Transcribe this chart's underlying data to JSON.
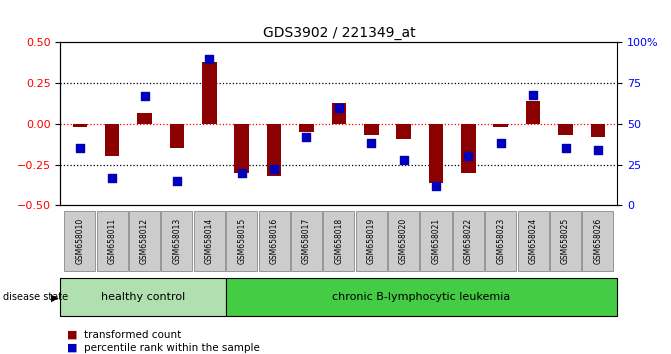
{
  "title": "GDS3902 / 221349_at",
  "samples": [
    "GSM658010",
    "GSM658011",
    "GSM658012",
    "GSM658013",
    "GSM658014",
    "GSM658015",
    "GSM658016",
    "GSM658017",
    "GSM658018",
    "GSM658019",
    "GSM658020",
    "GSM658021",
    "GSM658022",
    "GSM658023",
    "GSM658024",
    "GSM658025",
    "GSM658026"
  ],
  "red_values": [
    -0.02,
    -0.2,
    0.07,
    -0.15,
    0.38,
    -0.3,
    -0.32,
    -0.05,
    0.13,
    -0.07,
    -0.09,
    -0.36,
    -0.3,
    -0.02,
    0.14,
    -0.07,
    -0.08
  ],
  "blue_percentiles": [
    35,
    17,
    67,
    15,
    90,
    20,
    22,
    42,
    60,
    38,
    28,
    12,
    30,
    38,
    68,
    35,
    34
  ],
  "group1_count": 5,
  "group1_label": "healthy control",
  "group2_label": "chronic B-lymphocytic leukemia",
  "group1_color": "#b0e0b0",
  "group2_color": "#44cc44",
  "bar_color": "#8B0000",
  "dot_color": "#0000BB",
  "ylim_left": [
    -0.5,
    0.5
  ],
  "ylim_right": [
    0,
    100
  ],
  "yticks_left": [
    -0.5,
    -0.25,
    0.0,
    0.25,
    0.5
  ],
  "yticks_right": [
    0,
    25,
    50,
    75,
    100
  ],
  "dotted_lines_black": [
    0.25,
    -0.25
  ],
  "dotted_line_red": 0.0,
  "bar_width": 0.45,
  "dot_size": 35,
  "sample_box_color": "#cccccc",
  "sample_box_edge": "#888888",
  "legend_red_label": "transformed count",
  "legend_blue_label": "percentile rank within the sample"
}
